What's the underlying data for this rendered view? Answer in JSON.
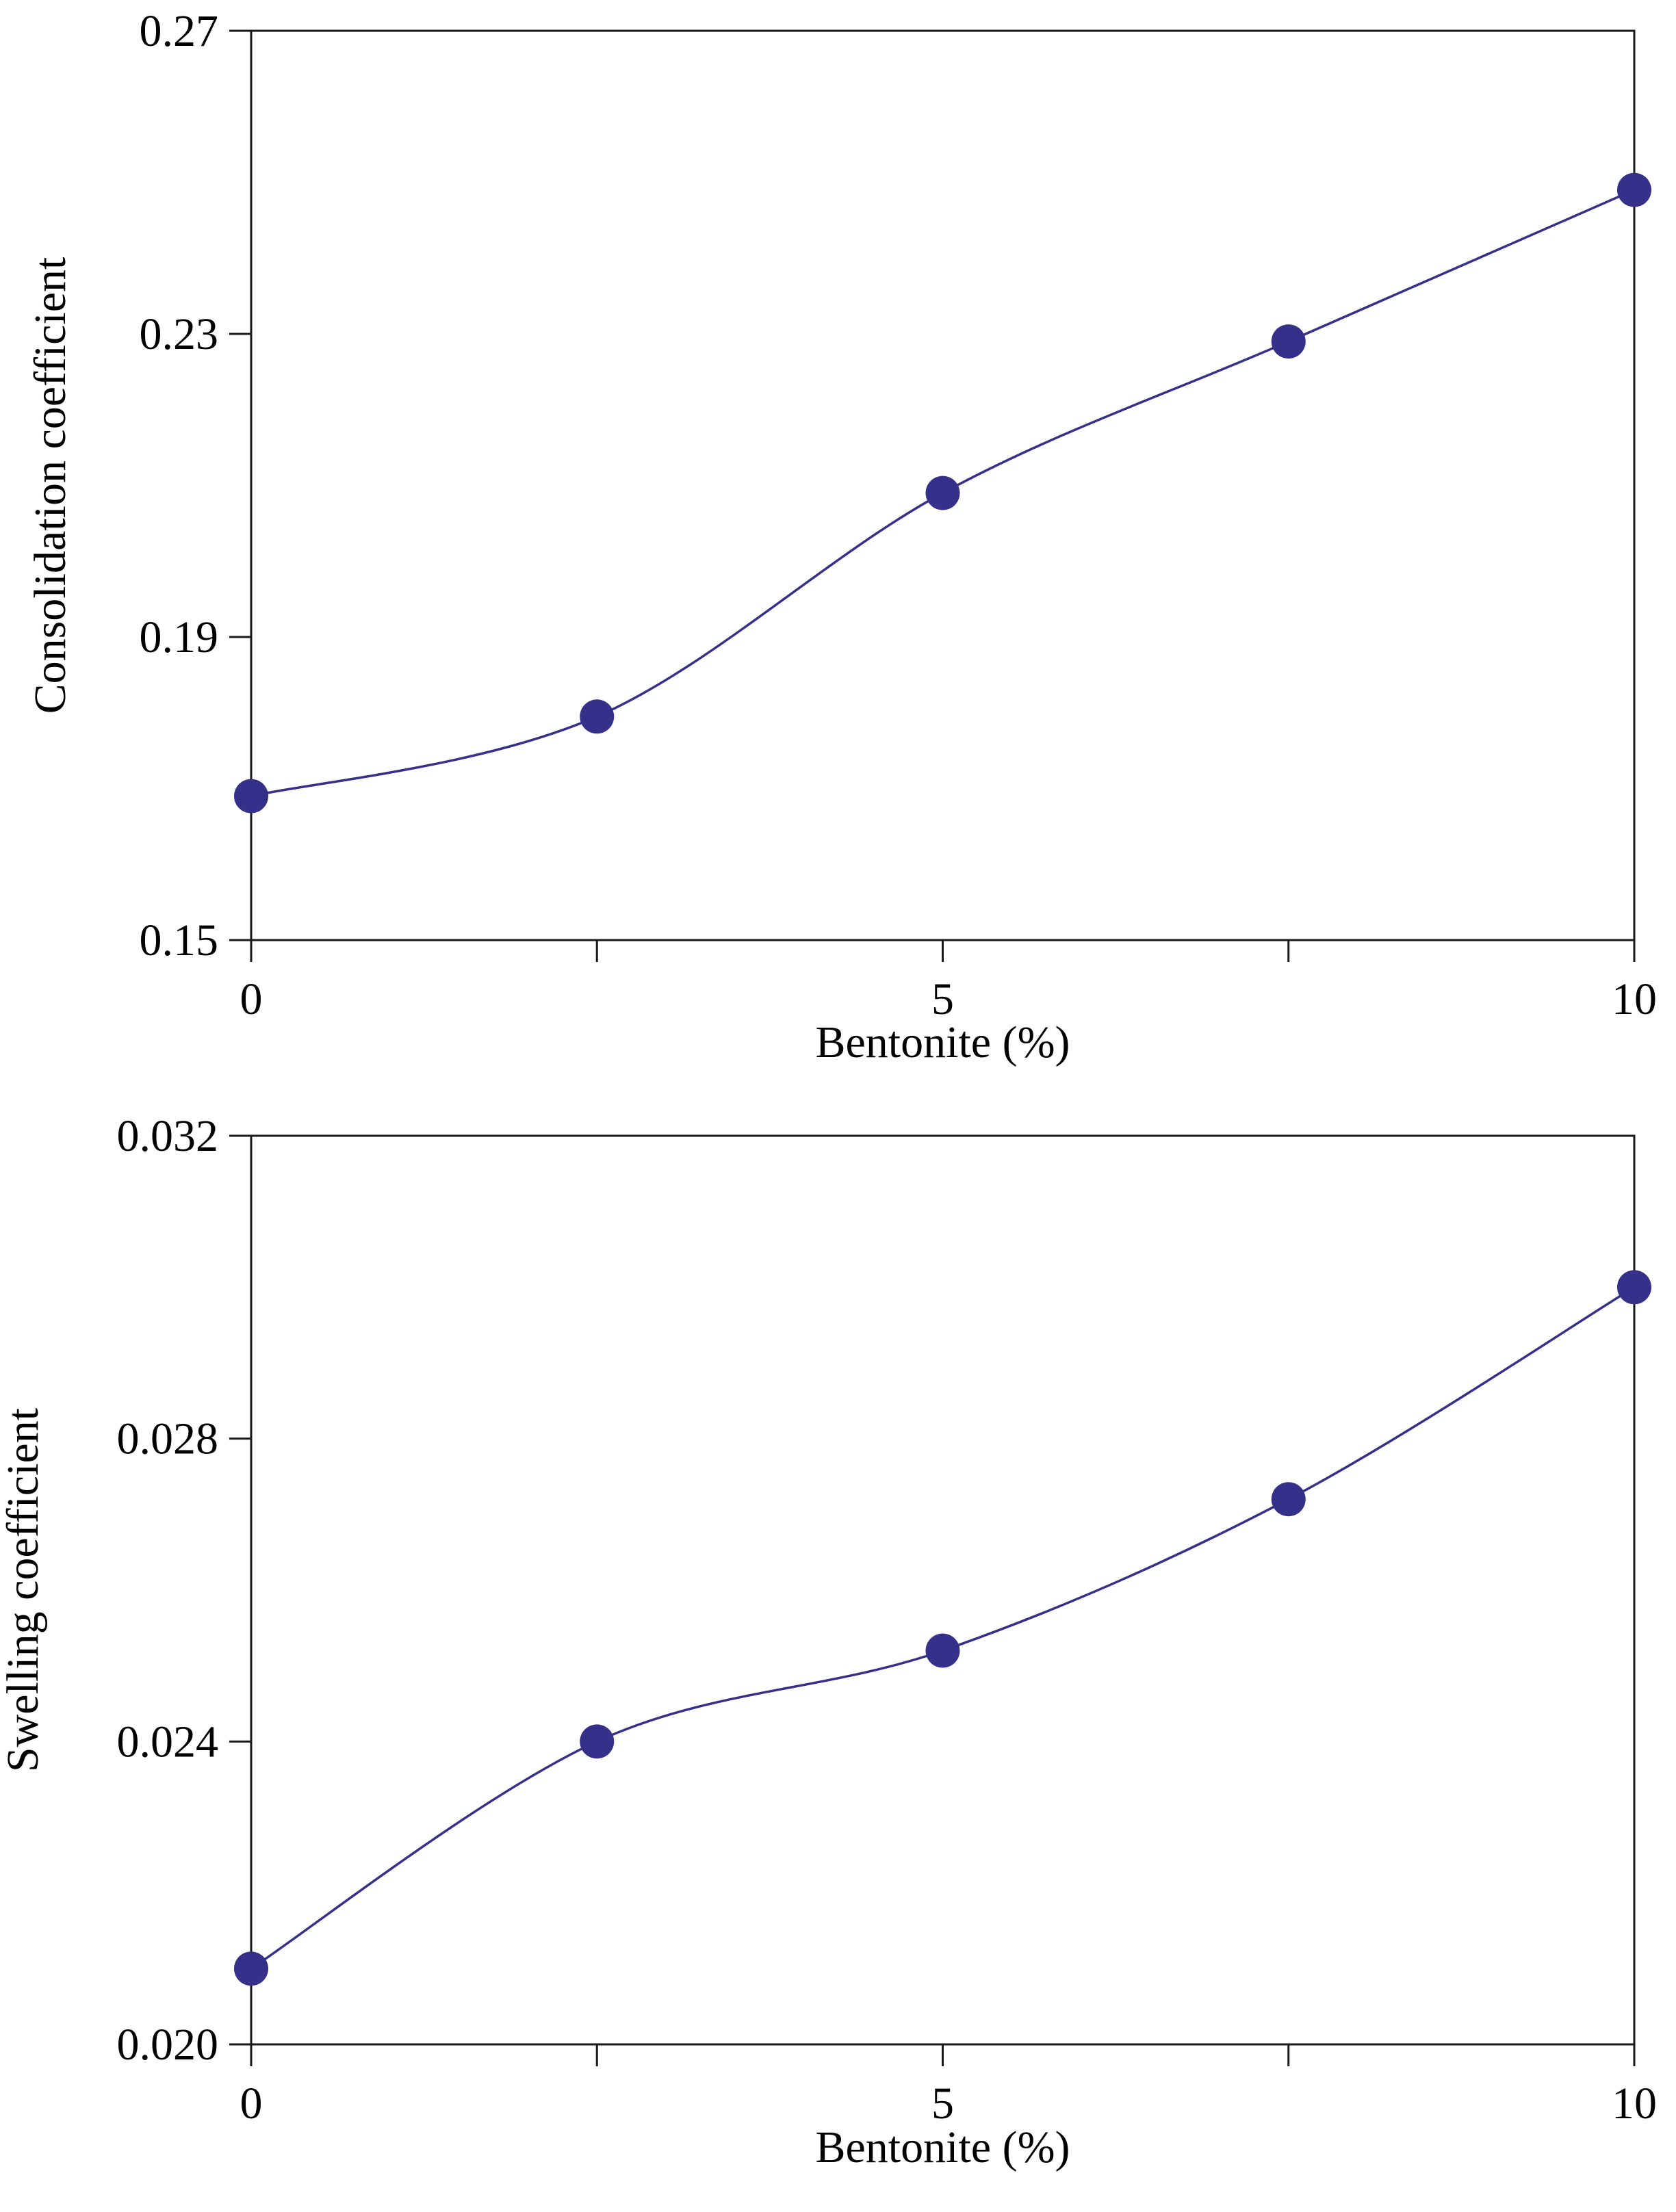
{
  "colors": {
    "series": "#35308a",
    "axis": "#1a1a1a"
  },
  "chart_data": [
    {
      "type": "line",
      "title": "",
      "xlabel": "Bentonite (%)",
      "ylabel": "Consolidation coefficient",
      "xlim": [
        0,
        10
      ],
      "ylim": [
        0.15,
        0.27
      ],
      "xticks": [
        0,
        2.5,
        5,
        7.5,
        10
      ],
      "xtick_labels": [
        "0",
        "",
        "5",
        "",
        "10"
      ],
      "yticks": [
        0.15,
        0.19,
        0.23,
        0.27
      ],
      "ytick_labels": [
        "0.15",
        "0.19",
        "0.23",
        "0.27"
      ],
      "grid": false,
      "series": [
        {
          "name": "Consolidation coefficient",
          "x": [
            0,
            2.5,
            5,
            7.5,
            10
          ],
          "y": [
            0.169,
            0.1795,
            0.209,
            0.229,
            0.249
          ]
        }
      ]
    },
    {
      "type": "line",
      "title": "",
      "xlabel": "Bentonite (%)",
      "ylabel": "Swelling coefficient",
      "xlim": [
        0,
        10
      ],
      "ylim": [
        0.02,
        0.032
      ],
      "xticks": [
        0,
        2.5,
        5,
        7.5,
        10
      ],
      "xtick_labels": [
        "0",
        "",
        "5",
        "",
        "10"
      ],
      "yticks": [
        0.02,
        0.024,
        0.028,
        0.032
      ],
      "ytick_labels": [
        "0.020",
        "0.024",
        "0.028",
        "0.032"
      ],
      "grid": false,
      "series": [
        {
          "name": "Swelling coefficient",
          "x": [
            0,
            2.5,
            5,
            7.5,
            10
          ],
          "y": [
            0.021,
            0.024,
            0.0252,
            0.0272,
            0.03
          ]
        }
      ]
    }
  ]
}
